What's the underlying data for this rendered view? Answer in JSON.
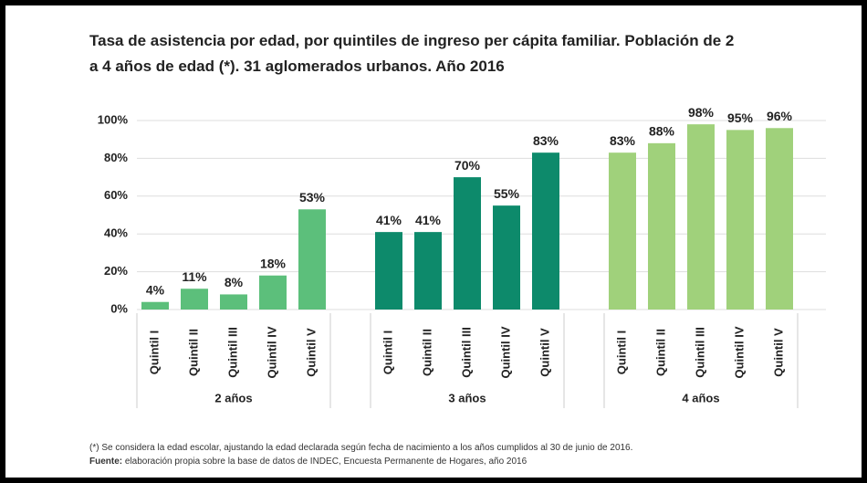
{
  "chart_data": {
    "type": "bar",
    "title": [
      "Tasa de asistencia por edad, por quintiles de ingreso per cápita familiar. Población de 2",
      "a 4 años de edad (*). 31 aglomerados urbanos. Año 2016"
    ],
    "ylim": [
      0,
      100
    ],
    "yticks": [
      {
        "value": 0,
        "label": "0%"
      },
      {
        "value": 20,
        "label": "20%"
      },
      {
        "value": 40,
        "label": "40%"
      },
      {
        "value": 60,
        "label": "60%"
      },
      {
        "value": 80,
        "label": "80%"
      },
      {
        "value": 100,
        "label": "100%"
      }
    ],
    "grid": true,
    "groups": [
      {
        "name": "2 años",
        "color": "#5cbf7b",
        "categories": [
          "Quintil I",
          "Quintil II",
          "Quintil III",
          "Quintil IV",
          "Quintil V"
        ],
        "values": [
          4,
          11,
          8,
          18,
          53
        ],
        "value_labels": [
          "4%",
          "11%",
          "8%",
          "18%",
          "53%"
        ]
      },
      {
        "name": "3 años",
        "color": "#0d8a6b",
        "categories": [
          "Quintil I",
          "Quintil II",
          "Quintil III",
          "Quintil IV",
          "Quintil V"
        ],
        "values": [
          41,
          41,
          70,
          55,
          83
        ],
        "value_labels": [
          "41%",
          "41%",
          "70%",
          "55%",
          "83%"
        ]
      },
      {
        "name": "4 años",
        "color": "#a0d17b",
        "categories": [
          "Quintil I",
          "Quintil II",
          "Quintil III",
          "Quintil IV",
          "Quintil V"
        ],
        "values": [
          83,
          88,
          98,
          95,
          96
        ],
        "value_labels": [
          "83%",
          "88%",
          "98%",
          "95%",
          "96%"
        ]
      }
    ],
    "note": "(*) Se considera la edad escolar, ajustando la edad declarada según fecha de nacimiento a los años cumplidos al 30 de junio de 2016.",
    "source_label": "Fuente:",
    "source": " elaboración propia sobre la base de datos de INDEC, Encuesta Permanente de Hogares, año 2016"
  }
}
